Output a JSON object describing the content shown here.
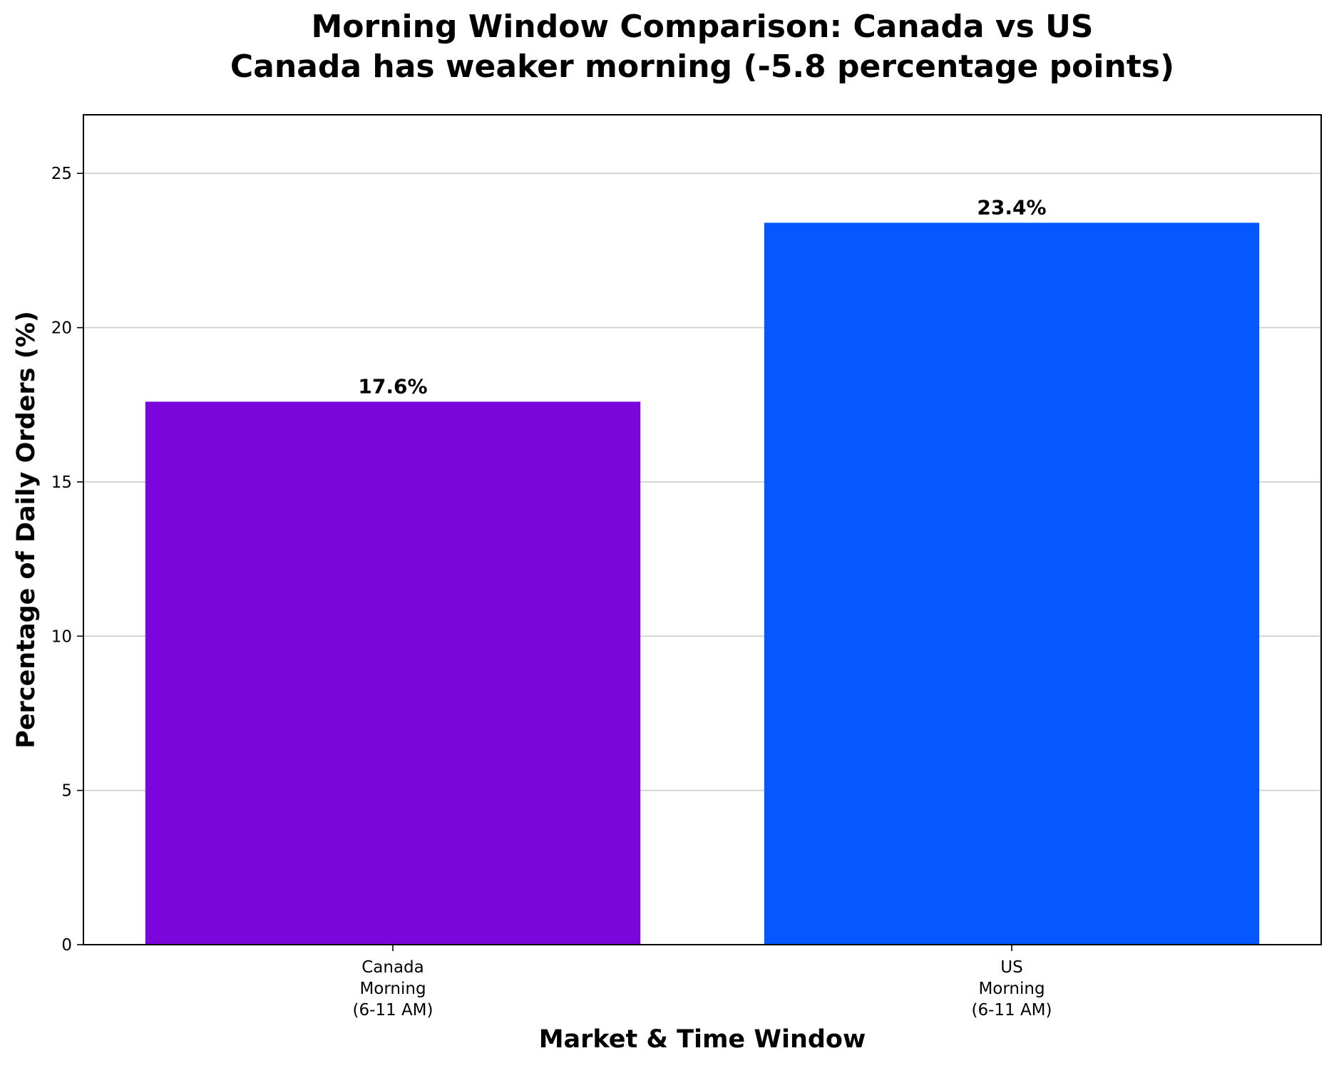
{
  "chart_data": {
    "type": "bar",
    "title": "Morning Window Comparison: Canada vs US",
    "subtitle": "Canada has weaker morning (-5.8 percentage points)",
    "xlabel": "Market & Time Window",
    "ylabel": "Percentage of Daily Orders (%)",
    "categories": [
      [
        "Canada",
        "Morning",
        "(6-11 AM)"
      ],
      [
        "US",
        "Morning",
        "(6-11 AM)"
      ]
    ],
    "values": [
      17.6,
      23.4
    ],
    "value_labels": [
      "17.6%",
      "23.4%"
    ],
    "colors": [
      "#7B06DC",
      "#0557FF"
    ],
    "ylim": [
      0,
      26.9
    ],
    "yticks": [
      0,
      5,
      10,
      15,
      20,
      25
    ],
    "grid": "horizontal"
  }
}
